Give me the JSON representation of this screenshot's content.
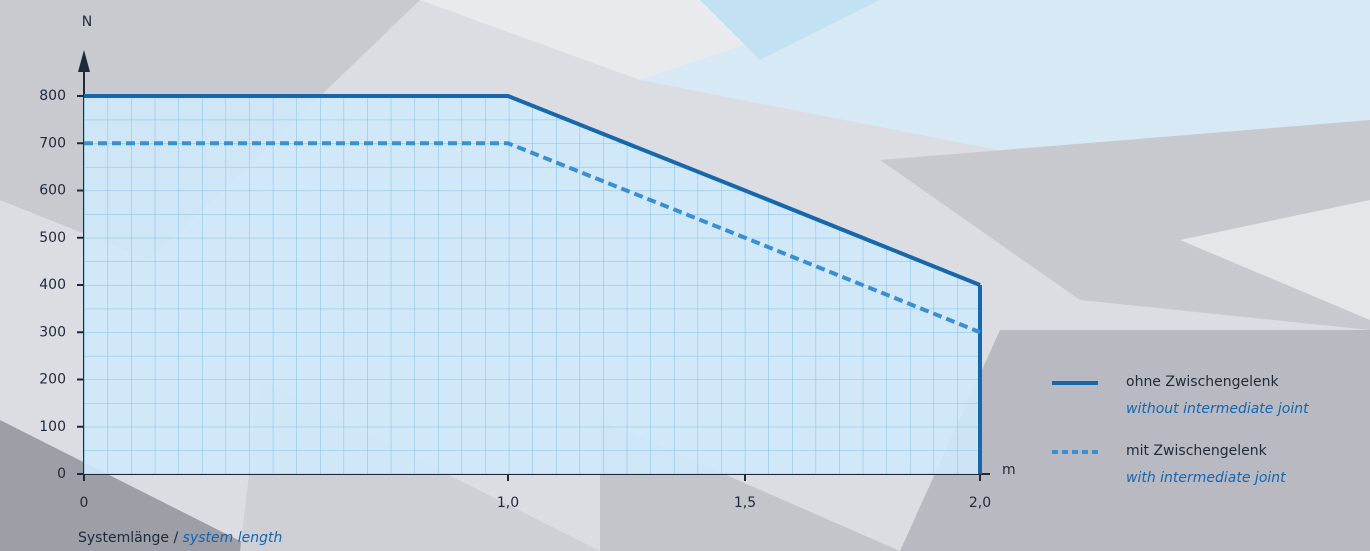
{
  "chart_data": {
    "type": "line",
    "y_label": "N",
    "x_label": "m",
    "x_title": "Systemlänge /",
    "x_title_en": "system length",
    "categories": [
      "0",
      "1,0",
      "1,5",
      "2,0"
    ],
    "series": [
      {
        "name": "ohne Zwischengelenk",
        "name_en": "without intermediate joint",
        "color": "#1767ad",
        "style": "solid",
        "values": [
          800,
          800,
          600,
          400
        ]
      },
      {
        "name": "mit Zwischengelenk",
        "name_en": "with intermediate joint",
        "color": "#3a8fd3",
        "style": "dashed",
        "values": [
          700,
          700,
          500,
          300
        ]
      }
    ],
    "ylim": [
      0,
      800
    ],
    "yticks": [
      0,
      100,
      200,
      300,
      400,
      500,
      600,
      700,
      800
    ],
    "fill_color": "#cfe9fb",
    "grid": true,
    "legend": "right"
  }
}
